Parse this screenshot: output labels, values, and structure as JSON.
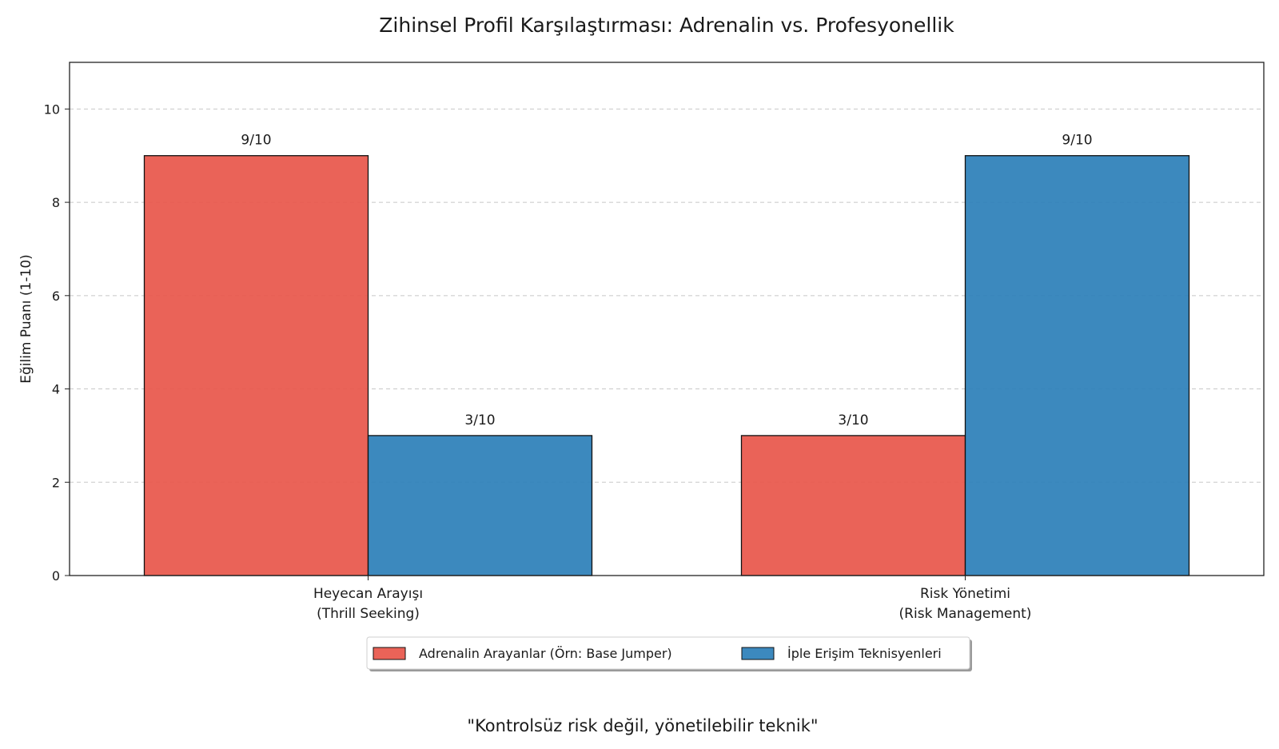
{
  "chart_data": {
    "type": "bar",
    "title": "Zihinsel Profil Karşılaştırması: Adrenalin vs. Profesyonellik",
    "ylabel": "Eğilim Puanı (1-10)",
    "xlabel": "",
    "ylim": [
      0,
      11
    ],
    "yticks": [
      "0",
      "2",
      "4",
      "6",
      "8",
      "10"
    ],
    "grid": "horizontal-dashed",
    "legend_position": "bottom-center",
    "categories": [
      [
        "Heyecan Arayışı",
        "(Thrill Seeking)"
      ],
      [
        "Risk Yönetimi",
        "(Risk Management)"
      ]
    ],
    "series": [
      {
        "name": "Adrenalin Arayanlar (Örn: Base Jumper)",
        "color": "#e8564a",
        "values": [
          9,
          3
        ],
        "labels": [
          "9/10",
          "3/10"
        ]
      },
      {
        "name": "İple Erişim Teknisyenleri",
        "color": "#2b7fb8",
        "values": [
          3,
          9
        ],
        "labels": [
          "3/10",
          "9/10"
        ]
      }
    ],
    "footer": "\"Kontrolsüz risk değil, yönetilebilir teknik\""
  }
}
